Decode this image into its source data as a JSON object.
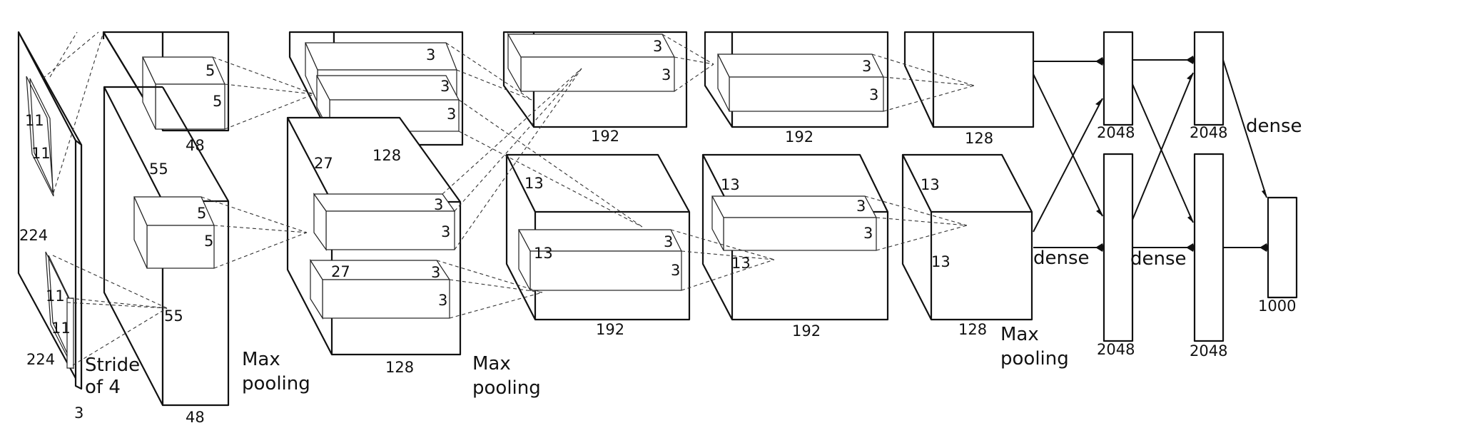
{
  "input": {
    "height": "224",
    "width": "224",
    "channels": "3",
    "kernel_h": "11",
    "kernel_w": "11",
    "kernel2_h": "11",
    "kernel2_w": "11",
    "stride_line1": "Stride",
    "stride_line2": "of 4"
  },
  "conv1": {
    "spatial": "55",
    "spatial_bottom": "55",
    "depth_top": "48",
    "depth_bottom": "48",
    "kernel_top_a": "5",
    "kernel_top_b": "5",
    "kernel_bot_a": "5",
    "kernel_bot_b": "5",
    "pool_line1": "Max",
    "pool_line2": "pooling"
  },
  "conv2": {
    "spatial": "27",
    "spatial_bottom": "27",
    "depth_top": "128",
    "depth_bottom": "128",
    "k1a": "3",
    "k1b": "3",
    "k2a": "3",
    "k2b": "3",
    "k3a": "3",
    "k3b": "3",
    "k4a": "3",
    "k4b": "3",
    "pool_line1": "Max",
    "pool_line2": "pooling"
  },
  "conv3": {
    "spatial": "13",
    "spatial_inner": "13",
    "depth_top": "192",
    "depth_bottom": "192",
    "k1a": "3",
    "k1b": "3",
    "k2a": "3",
    "k2b": "3"
  },
  "conv4": {
    "spatial": "13",
    "spatial_inner": "13",
    "depth_top": "192",
    "depth_bottom": "192",
    "k1a": "3",
    "k1b": "3",
    "k2a": "3",
    "k2b": "3"
  },
  "conv5": {
    "spatial": "13",
    "spatial_inner": "13",
    "depth_top": "128",
    "depth_bottom": "128",
    "pool_line1": "Max",
    "pool_line2": "pooling"
  },
  "dense": {
    "label1": "dense",
    "label2": "dense",
    "label3": "dense",
    "fc6_top": "2048",
    "fc6_bottom": "2048",
    "fc7_top": "2048",
    "fc7_bottom": "2048",
    "output": "1000"
  }
}
